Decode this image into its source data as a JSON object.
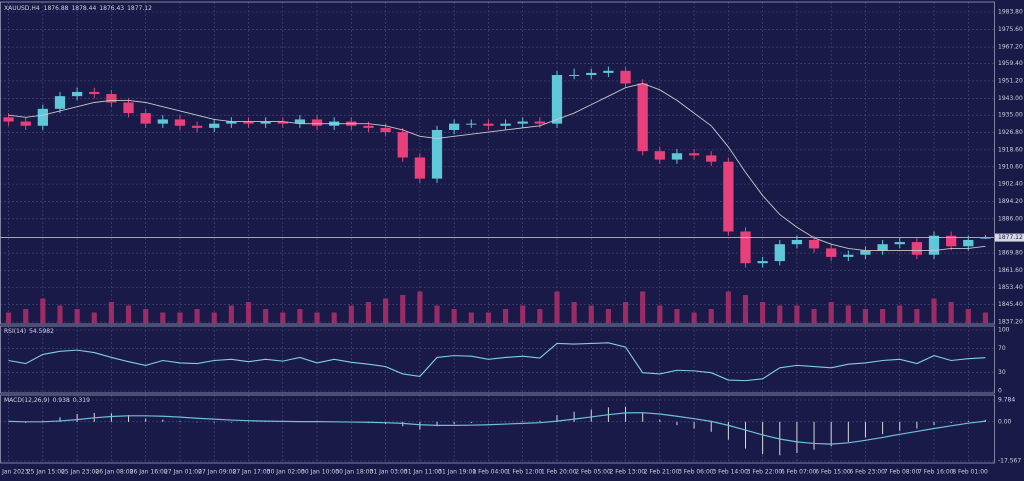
{
  "chart_data": [
    {
      "type": "candlestick",
      "symbol": "XAUUSD,H4",
      "categories": [
        "25 Jan 2023",
        null,
        "25 Jan 15:00",
        null,
        "25 Jan 23:00",
        null,
        "26 Jan 08:00",
        null,
        "26 Jan 16:00",
        null,
        "27 Jan 01:00",
        null,
        "27 Jan 09:00",
        null,
        "27 Jan 17:00",
        null,
        "30 Jan 02:00",
        null,
        "30 Jan 10:00",
        null,
        "30 Jan 18:00",
        null,
        "31 Jan 03:00",
        null,
        "31 Jan 11:00",
        null,
        "31 Jan 19:00",
        null,
        "1 Feb 04:00",
        null,
        "1 Feb 12:00",
        null,
        "1 Feb 20:00",
        null,
        "2 Feb 05:00",
        null,
        "2 Feb 13:00",
        null,
        "2 Feb 21:00",
        null,
        "3 Feb 06:00",
        null,
        "3 Feb 14:00",
        null,
        "3 Feb 22:00",
        null,
        "6 Feb 07:00",
        null,
        "6 Feb 15:00",
        null,
        "6 Feb 23:00",
        null,
        "7 Feb 08:00",
        null,
        "7 Feb 16:00",
        null,
        "8 Feb 01:00",
        null
      ],
      "open": [
        1934,
        1932,
        1930,
        1938,
        1944,
        1946,
        1945,
        1941,
        1936,
        1931,
        1933,
        1930,
        1929,
        1931,
        1932,
        1931,
        1932,
        1931,
        1933,
        1930,
        1932,
        1930,
        1929,
        1927,
        1915,
        1905,
        1928,
        1931,
        1931,
        1930,
        1931,
        1932,
        1931,
        1954,
        1954,
        1955,
        1956,
        1950,
        1918,
        1914,
        1917,
        1916,
        1913,
        1880,
        1865,
        1866,
        1874,
        1876,
        1872,
        1868,
        1869,
        1871,
        1874,
        1875,
        1869,
        1878,
        1873,
        1876.88
      ],
      "high": [
        1936,
        1934,
        1940,
        1946,
        1948,
        1948,
        1947,
        1943,
        1938,
        1935,
        1935,
        1932,
        1933,
        1934,
        1934,
        1934,
        1934,
        1935,
        1935,
        1934,
        1934,
        1932,
        1931,
        1929,
        1917,
        1930,
        1933,
        1933,
        1933,
        1933,
        1934,
        1934,
        1956,
        1957,
        1957,
        1958,
        1958,
        1952,
        1920,
        1919,
        1919,
        1918,
        1915,
        1882,
        1868,
        1876,
        1878,
        1878,
        1874,
        1871,
        1873,
        1876,
        1877,
        1877,
        1880,
        1880,
        1878,
        1878.44
      ],
      "low": [
        1930,
        1928,
        1928,
        1936,
        1942,
        1943,
        1939,
        1934,
        1929,
        1929,
        1928,
        1927,
        1927,
        1929,
        1929,
        1929,
        1929,
        1929,
        1928,
        1928,
        1928,
        1927,
        1925,
        1913,
        1903,
        1903,
        1926,
        1929,
        1928,
        1928,
        1929,
        1929,
        1929,
        1952,
        1952,
        1953,
        1948,
        1916,
        1912,
        1912,
        1914,
        1911,
        1878,
        1863,
        1863,
        1864,
        1872,
        1870,
        1866,
        1866,
        1867,
        1869,
        1872,
        1867,
        1867,
        1871,
        1871,
        1876.43
      ],
      "close": [
        1932,
        1930,
        1938,
        1944,
        1946,
        1945,
        1941,
        1936,
        1931,
        1933,
        1930,
        1929,
        1931,
        1932,
        1931,
        1932,
        1931,
        1933,
        1930,
        1932,
        1930,
        1929,
        1927,
        1915,
        1905,
        1928,
        1931,
        1931,
        1930,
        1931,
        1932,
        1931,
        1954,
        1954,
        1955,
        1956,
        1950,
        1918,
        1914,
        1917,
        1916,
        1913,
        1880,
        1865,
        1866,
        1874,
        1876,
        1872,
        1868,
        1869,
        1871,
        1874,
        1875,
        1869,
        1878,
        1873,
        1876,
        1877.12
      ],
      "ma": [
        1935,
        1934,
        1935,
        1937,
        1939,
        1941,
        1942,
        1942,
        1941,
        1939,
        1937,
        1935,
        1933,
        1932,
        1932,
        1932,
        1932,
        1931,
        1931,
        1931,
        1931,
        1931,
        1930,
        1928,
        1925,
        1924,
        1925,
        1926,
        1927,
        1928,
        1929,
        1930,
        1933,
        1936,
        1940,
        1944,
        1948,
        1950,
        1947,
        1942,
        1936,
        1930,
        1920,
        1908,
        1897,
        1888,
        1882,
        1877,
        1874,
        1872,
        1871,
        1871,
        1871,
        1871,
        1871,
        1872,
        1872,
        1873
      ],
      "volume": [
        3,
        4,
        7,
        5,
        4,
        3,
        6,
        5,
        4,
        3,
        3,
        4,
        3,
        5,
        6,
        4,
        3,
        4,
        3,
        3,
        5,
        6,
        7,
        8,
        9,
        5,
        4,
        3,
        3,
        4,
        5,
        4,
        9,
        6,
        5,
        4,
        6,
        9,
        5,
        4,
        3,
        4,
        9,
        8,
        6,
        5,
        5,
        4,
        6,
        5,
        4,
        4,
        5,
        4,
        7,
        6,
        4,
        3
      ],
      "ylim": [
        1837.2,
        1983.8
      ],
      "yticks": [
        {
          "value": 1983.8,
          "label": "1983.80"
        },
        {
          "value": 1975.6,
          "label": "1975.60"
        },
        {
          "value": 1967.2,
          "label": "1967.20"
        },
        {
          "value": 1959.4,
          "label": "1959.40"
        },
        {
          "value": 1951.2,
          "label": "1951.20"
        },
        {
          "value": 1943,
          "label": "1943.00"
        },
        {
          "value": 1935,
          "label": "1935.00"
        },
        {
          "value": 1926.8,
          "label": "1926.80"
        },
        {
          "value": 1918.6,
          "label": "1918.60"
        },
        {
          "value": 1910.6,
          "label": "1910.60"
        },
        {
          "value": 1902.4,
          "label": "1902.40"
        },
        {
          "value": 1894.2,
          "label": "1894.20"
        },
        {
          "value": 1886,
          "label": "1886.00"
        },
        {
          "value": 1869.8,
          "label": "1869.80"
        },
        {
          "value": 1861.6,
          "label": "1861.60"
        },
        {
          "value": 1853.4,
          "label": "1853.40"
        },
        {
          "value": 1845.4,
          "label": "1845.40"
        },
        {
          "value": 1837.2,
          "label": "1837.20"
        }
      ],
      "grid": true,
      "up_color": "#5ec8d8",
      "down_color": "#e8407a",
      "ma_color": "#c8c8c8",
      "volume_color": "#b0306a"
    },
    {
      "type": "line",
      "title": "RSI(14)",
      "values": [
        50,
        45,
        60,
        65,
        67,
        63,
        55,
        48,
        42,
        50,
        46,
        45,
        50,
        52,
        48,
        52,
        49,
        55,
        46,
        52,
        47,
        44,
        40,
        28,
        24,
        55,
        58,
        57,
        52,
        55,
        57,
        54,
        78,
        77,
        78,
        79,
        72,
        30,
        28,
        34,
        33,
        30,
        18,
        17,
        20,
        38,
        42,
        40,
        38,
        44,
        46,
        50,
        52,
        45,
        58,
        50,
        53,
        54.5982
      ],
      "ylim": [
        0,
        100
      ],
      "yticks": [
        100,
        70,
        30,
        0
      ],
      "grid": true,
      "color": "#7fd0e0"
    },
    {
      "type": "macd",
      "title": "MACD(12,26,9)",
      "values": [
        0,
        -0.5,
        0.5,
        2,
        3.5,
        4,
        3.8,
        3,
        1.5,
        1,
        0.3,
        -0.2,
        -0.4,
        -0.3,
        -0.2,
        0,
        -0.1,
        0.1,
        -0.2,
        0,
        -0.3,
        -0.6,
        -1,
        -2,
        -3.5,
        -2,
        -1,
        -0.5,
        -0.2,
        0,
        0.3,
        0.5,
        3,
        4.5,
        5.5,
        6.5,
        6.8,
        4,
        1,
        -1.5,
        -3,
        -4.5,
        -8,
        -12,
        -14.5,
        -15,
        -14,
        -12.5,
        -11,
        -9,
        -7,
        -5.5,
        -4,
        -3,
        -1.5,
        -0.5,
        0.4,
        0.938
      ],
      "signal": [
        0.2,
        0,
        0,
        0.4,
        1,
        1.8,
        2.4,
        2.7,
        2.7,
        2.5,
        2.1,
        1.6,
        1.2,
        0.8,
        0.5,
        0.3,
        0.2,
        0.1,
        0.1,
        0,
        -0.1,
        -0.2,
        -0.4,
        -0.7,
        -1.3,
        -1.6,
        -1.6,
        -1.5,
        -1.3,
        -1,
        -0.7,
        -0.4,
        0.3,
        1.2,
        2.2,
        3.2,
        4,
        4.1,
        3.5,
        2.5,
        1.4,
        0.2,
        -1.6,
        -3.7,
        -5.9,
        -7.7,
        -9,
        -9.7,
        -10,
        -9.4,
        -8.3,
        -7,
        -5.6,
        -4.3,
        -3,
        -1.8,
        -0.6,
        0.319
      ],
      "ylim": [
        -17.567,
        9.784
      ],
      "yticks": [
        9.784,
        {
          "value": 0,
          "label": "0.00"
        },
        -17.567
      ],
      "grid": true,
      "color": "#d8d8d8",
      "signal_color": "#6cc0d8"
    }
  ]
}
